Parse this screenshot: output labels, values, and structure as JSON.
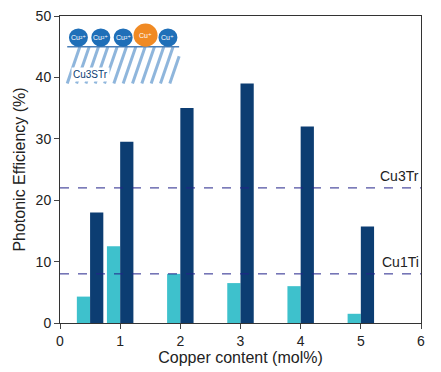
{
  "chart_data": {
    "type": "bar",
    "x_label": "Copper content (mol%)",
    "y_label": "Photonic Efficiency (%)",
    "x": [
      0.5,
      1,
      2,
      3,
      4,
      5
    ],
    "series": [
      {
        "color": "#3ec1cc",
        "values": [
          4.3,
          12.5,
          8,
          6.5,
          6,
          1.5
        ]
      },
      {
        "color": "#0c3d72",
        "values": [
          18,
          29.5,
          35,
          39,
          32,
          15.7
        ]
      }
    ],
    "xlim": [
      0,
      6
    ],
    "xticks": [
      0,
      1,
      2,
      3,
      4,
      5,
      6
    ],
    "ylim": [
      0,
      50
    ],
    "yticks": [
      0,
      10,
      20,
      30,
      40,
      50
    ],
    "grid": false,
    "reference_lines": [
      {
        "value": 22,
        "label": "Cu3Tr",
        "color": "#23238a",
        "line_style": "dash"
      },
      {
        "value": 8,
        "label": "Cu1Ti",
        "color": "#23238a",
        "line_style": "dash"
      }
    ],
    "inset": {
      "substrate": "Cu3STr",
      "ions": [
        "Cu²⁺",
        "Cu²⁺",
        "Cu²⁺",
        "Cu⁺",
        "Cu⁺"
      ],
      "colors": [
        "#1f6fb8",
        "#1f6fb8",
        "#1f6fb8",
        "#f08a24",
        "#1f6fb8"
      ]
    }
  }
}
